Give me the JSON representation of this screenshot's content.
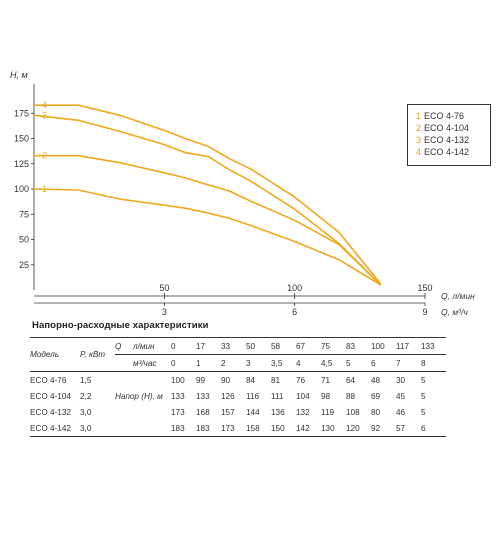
{
  "chart_data": {
    "type": "line",
    "ylabel": "H, м",
    "xlabel": "Q, л/мин",
    "xlabel2": "Q, м³/ч",
    "ylim": [
      0,
      200
    ],
    "xlim": [
      0,
      150
    ],
    "y_ticks": [
      "25",
      "50",
      "75",
      "100",
      "125",
      "150",
      "175"
    ],
    "x_ticks": [
      "50",
      "100",
      "150"
    ],
    "x2_ticks": [
      "3",
      "6",
      "9"
    ],
    "grid": false,
    "legend": "right",
    "line_color": "#f0a81d",
    "series": [
      {
        "name": "ECO 4-76",
        "label": "1",
        "x": [
          0,
          17,
          33,
          50,
          58,
          67,
          75,
          83,
          100,
          117,
          133
        ],
        "y": [
          100,
          99,
          90,
          84,
          81,
          76,
          71,
          64,
          48,
          30,
          5
        ]
      },
      {
        "name": "ECO 4-104",
        "label": "2",
        "x": [
          0,
          17,
          33,
          50,
          58,
          67,
          75,
          83,
          100,
          117,
          133
        ],
        "y": [
          133,
          133,
          126,
          116,
          111,
          104,
          98,
          88,
          69,
          45,
          5
        ]
      },
      {
        "name": "ECO 4-132",
        "label": "3",
        "x": [
          0,
          17,
          33,
          50,
          58,
          67,
          75,
          83,
          100,
          117,
          133
        ],
        "y": [
          173,
          168,
          157,
          144,
          136,
          132,
          119,
          108,
          80,
          46,
          5
        ]
      },
      {
        "name": "ECO 4-142",
        "label": "4",
        "x": [
          0,
          17,
          33,
          50,
          58,
          67,
          75,
          83,
          100,
          117,
          133
        ],
        "y": [
          183,
          183,
          173,
          158,
          150,
          142,
          130,
          120,
          92,
          57,
          6
        ]
      }
    ]
  },
  "legend": [
    {
      "num": "1",
      "label": "ECO 4-76"
    },
    {
      "num": "2",
      "label": "ECO 4-104"
    },
    {
      "num": "3",
      "label": "ECO 4-132"
    },
    {
      "num": "4",
      "label": "ECO 4-142"
    }
  ],
  "table": {
    "title": "Напорно-расходные характеристики",
    "h_model": "Модель",
    "h_power": "P, кВт",
    "h_q": "Q",
    "unit_lmin": "л/мин",
    "unit_m3h": "м³/час",
    "head_label": "Напор (Н), м",
    "flow_lmin": [
      "0",
      "17",
      "33",
      "50",
      "58",
      "67",
      "75",
      "83",
      "100",
      "117",
      "133"
    ],
    "flow_m3h": [
      "0",
      "1",
      "2",
      "3",
      "3,5",
      "4",
      "4,5",
      "5",
      "6",
      "7",
      "8"
    ],
    "rows": [
      {
        "model": "ECO 4-76",
        "power": "1,5",
        "head": [
          "100",
          "99",
          "90",
          "84",
          "81",
          "76",
          "71",
          "64",
          "48",
          "30",
          "5"
        ]
      },
      {
        "model": "ECO 4-104",
        "power": "2,2",
        "head": [
          "133",
          "133",
          "126",
          "116",
          "111",
          "104",
          "98",
          "88",
          "69",
          "45",
          "5"
        ]
      },
      {
        "model": "ECO 4-132",
        "power": "3,0",
        "head": [
          "173",
          "168",
          "157",
          "144",
          "136",
          "132",
          "119",
          "108",
          "80",
          "46",
          "5"
        ]
      },
      {
        "model": "ECO 4-142",
        "power": "3,0",
        "head": [
          "183",
          "183",
          "173",
          "158",
          "150",
          "142",
          "130",
          "120",
          "92",
          "57",
          "6"
        ]
      }
    ]
  }
}
